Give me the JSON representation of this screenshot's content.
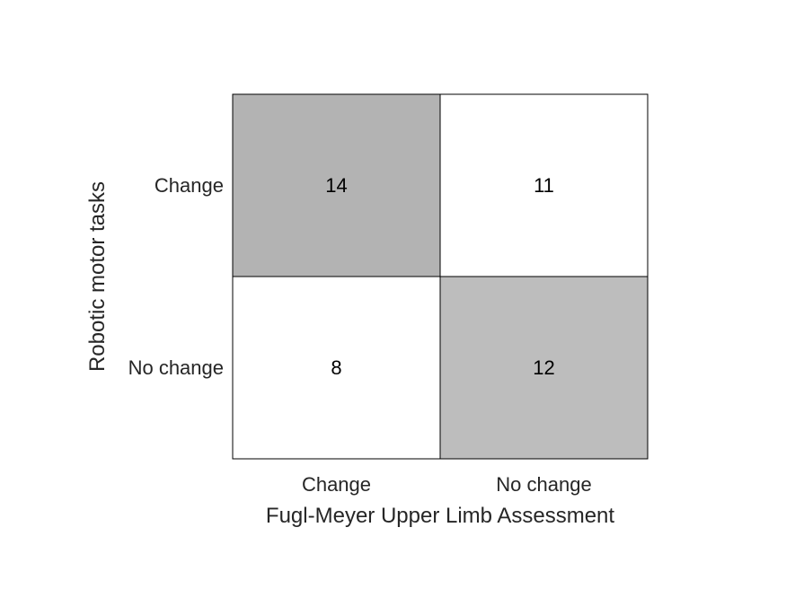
{
  "chart_data": {
    "type": "heatmap",
    "title": "",
    "xlabel": "Fugl-Meyer Upper Limb Assessment",
    "ylabel": "Robotic motor tasks",
    "x_categories": [
      "Change",
      "No change"
    ],
    "y_categories": [
      "Change",
      "No change"
    ],
    "values": [
      [
        14,
        11
      ],
      [
        8,
        12
      ]
    ],
    "colors": {
      "matrix": [
        [
          "#b3b3b3",
          "#ffffff"
        ],
        [
          "#ffffff",
          "#bdbdbd"
        ]
      ],
      "border": "#000000",
      "text": "#262626"
    },
    "grid": false,
    "legend": "none"
  }
}
